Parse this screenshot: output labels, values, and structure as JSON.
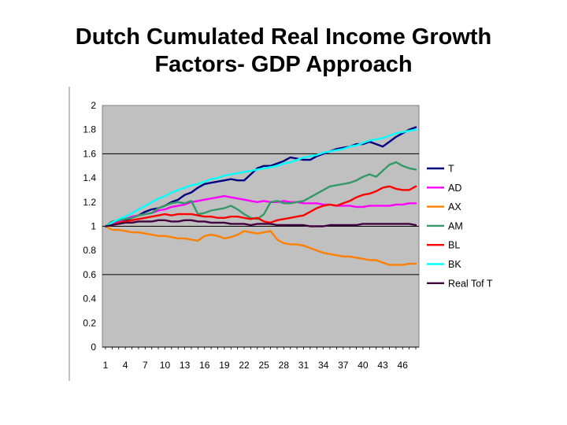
{
  "slide": {
    "title": "Dutch Cumulated Real Income Growth\nFactors- GDP Approach"
  },
  "chart_data": {
    "type": "line",
    "title": "Dutch Cumulated Real Income Growth Factors- GDP Approach",
    "xlabel": "",
    "ylabel": "",
    "ylim": [
      0,
      2
    ],
    "yticks": [
      "0",
      "0.2",
      "0.4",
      "0.6",
      "0.8",
      "1",
      "1.2",
      "1.4",
      "1.6",
      "1.8",
      "2"
    ],
    "xticks": [
      "1",
      "4",
      "7",
      "10",
      "13",
      "16",
      "19",
      "22",
      "25",
      "28",
      "31",
      "34",
      "37",
      "40",
      "43",
      "46"
    ],
    "x": [
      1,
      2,
      3,
      4,
      5,
      6,
      7,
      8,
      9,
      10,
      11,
      12,
      13,
      14,
      15,
      16,
      17,
      18,
      19,
      20,
      21,
      22,
      23,
      24,
      25,
      26,
      27,
      28,
      29,
      30,
      31,
      32,
      33,
      34,
      35,
      36,
      37,
      38,
      39,
      40,
      41,
      42,
      43,
      44,
      45,
      46,
      47,
      48
    ],
    "grid": "horizontal major gridlines at 0.6, 1, 1.6",
    "plot_background": "#c0c0c0",
    "legend_position": "right",
    "series": [
      {
        "name": "T",
        "color": "#000080",
        "values": [
          1.0,
          1.01,
          1.03,
          1.05,
          1.07,
          1.09,
          1.12,
          1.14,
          1.15,
          1.17,
          1.2,
          1.22,
          1.26,
          1.28,
          1.32,
          1.35,
          1.36,
          1.37,
          1.38,
          1.39,
          1.38,
          1.38,
          1.43,
          1.48,
          1.5,
          1.5,
          1.52,
          1.54,
          1.57,
          1.56,
          1.55,
          1.55,
          1.58,
          1.6,
          1.62,
          1.64,
          1.65,
          1.66,
          1.68,
          1.68,
          1.7,
          1.68,
          1.66,
          1.7,
          1.74,
          1.77,
          1.8,
          1.82
        ]
      },
      {
        "name": "AD",
        "color": "#ff00ff",
        "values": [
          1.0,
          1.02,
          1.04,
          1.06,
          1.08,
          1.09,
          1.1,
          1.11,
          1.13,
          1.14,
          1.16,
          1.17,
          1.18,
          1.2,
          1.21,
          1.22,
          1.23,
          1.24,
          1.25,
          1.24,
          1.23,
          1.22,
          1.21,
          1.2,
          1.21,
          1.2,
          1.2,
          1.21,
          1.2,
          1.2,
          1.19,
          1.19,
          1.19,
          1.18,
          1.18,
          1.17,
          1.17,
          1.17,
          1.16,
          1.16,
          1.17,
          1.17,
          1.17,
          1.17,
          1.18,
          1.18,
          1.19,
          1.19
        ]
      },
      {
        "name": "AX",
        "color": "#ff8000",
        "values": [
          1.0,
          0.97,
          0.97,
          0.96,
          0.95,
          0.95,
          0.94,
          0.93,
          0.92,
          0.92,
          0.91,
          0.9,
          0.9,
          0.89,
          0.88,
          0.92,
          0.93,
          0.92,
          0.9,
          0.91,
          0.93,
          0.96,
          0.95,
          0.94,
          0.95,
          0.96,
          0.89,
          0.86,
          0.85,
          0.85,
          0.84,
          0.82,
          0.8,
          0.78,
          0.77,
          0.76,
          0.75,
          0.75,
          0.74,
          0.73,
          0.72,
          0.72,
          0.7,
          0.68,
          0.68,
          0.68,
          0.69,
          0.69
        ]
      },
      {
        "name": "AM",
        "color": "#339966",
        "values": [
          1.0,
          1.04,
          1.05,
          1.06,
          1.07,
          1.09,
          1.1,
          1.11,
          1.15,
          1.17,
          1.19,
          1.2,
          1.19,
          1.21,
          1.1,
          1.11,
          1.13,
          1.14,
          1.15,
          1.17,
          1.14,
          1.1,
          1.07,
          1.06,
          1.1,
          1.2,
          1.21,
          1.19,
          1.19,
          1.2,
          1.21,
          1.24,
          1.27,
          1.3,
          1.33,
          1.34,
          1.35,
          1.36,
          1.38,
          1.41,
          1.43,
          1.41,
          1.46,
          1.51,
          1.53,
          1.5,
          1.48,
          1.47
        ]
      },
      {
        "name": "BL",
        "color": "#ff0000",
        "values": [
          1.0,
          1.01,
          1.03,
          1.04,
          1.05,
          1.06,
          1.07,
          1.08,
          1.09,
          1.1,
          1.09,
          1.1,
          1.1,
          1.1,
          1.09,
          1.08,
          1.08,
          1.07,
          1.07,
          1.08,
          1.08,
          1.07,
          1.06,
          1.07,
          1.04,
          1.03,
          1.05,
          1.06,
          1.07,
          1.08,
          1.09,
          1.12,
          1.15,
          1.17,
          1.18,
          1.17,
          1.19,
          1.21,
          1.24,
          1.26,
          1.27,
          1.29,
          1.32,
          1.33,
          1.31,
          1.3,
          1.3,
          1.33
        ]
      },
      {
        "name": "BK",
        "color": "#00ffff",
        "values": [
          1.0,
          1.03,
          1.06,
          1.08,
          1.11,
          1.14,
          1.17,
          1.2,
          1.23,
          1.25,
          1.28,
          1.3,
          1.32,
          1.34,
          1.35,
          1.37,
          1.39,
          1.4,
          1.42,
          1.43,
          1.44,
          1.45,
          1.46,
          1.47,
          1.48,
          1.49,
          1.5,
          1.52,
          1.53,
          1.55,
          1.57,
          1.58,
          1.59,
          1.61,
          1.62,
          1.63,
          1.64,
          1.66,
          1.67,
          1.69,
          1.71,
          1.72,
          1.73,
          1.75,
          1.77,
          1.78,
          1.79,
          1.8
        ]
      },
      {
        "name": "Real Tof T",
        "color": "#400040",
        "values": [
          1.0,
          1.01,
          1.02,
          1.03,
          1.03,
          1.04,
          1.04,
          1.04,
          1.05,
          1.05,
          1.04,
          1.04,
          1.05,
          1.05,
          1.04,
          1.04,
          1.03,
          1.03,
          1.03,
          1.02,
          1.02,
          1.02,
          1.01,
          1.02,
          1.02,
          1.02,
          1.01,
          1.01,
          1.01,
          1.01,
          1.01,
          1.0,
          1.0,
          1.0,
          1.01,
          1.01,
          1.01,
          1.01,
          1.01,
          1.02,
          1.02,
          1.02,
          1.02,
          1.02,
          1.02,
          1.02,
          1.02,
          1.01
        ]
      }
    ]
  }
}
